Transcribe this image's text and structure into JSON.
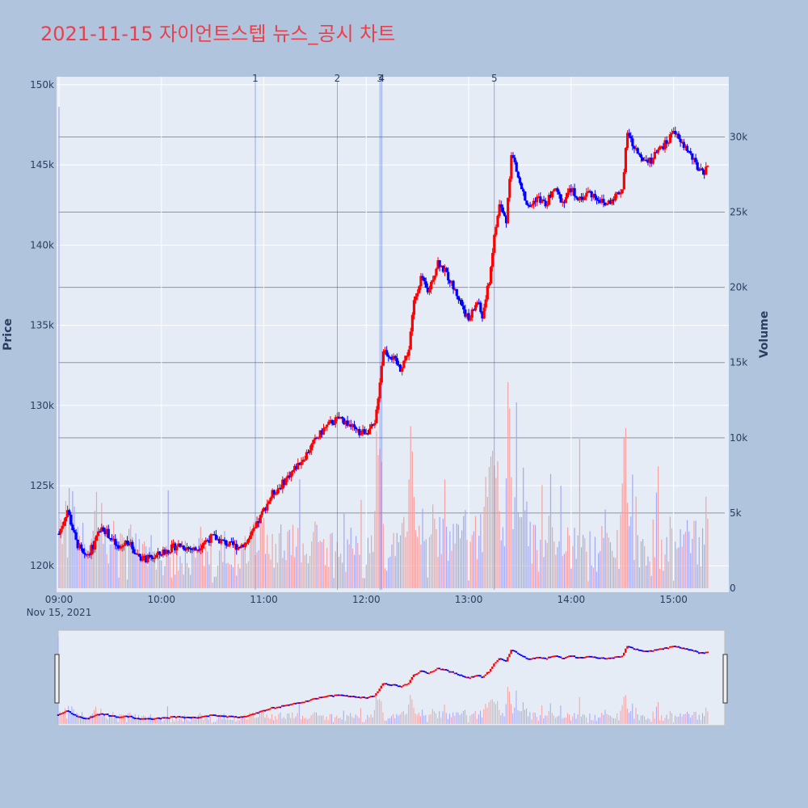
{
  "title": "2021-11-15 자이언트스텝 뉴스_공시 차트",
  "colors": {
    "up": "#ff0000",
    "down": "#0000ff",
    "vol_up": "#f4a3a3",
    "vol_down": "#a3a9f4",
    "bg": "#b0c4de",
    "plot_bg": "#e5ecf6"
  },
  "chart_data": {
    "type": "candlestick",
    "title": "2021-11-15 자이언트스텝 뉴스_공시 차트",
    "ylabel": "Price",
    "y2label": "Volume",
    "ylim": [
      118500,
      150500
    ],
    "y2lim": [
      0,
      34000
    ],
    "yticks": [
      120000,
      125000,
      130000,
      135000,
      140000,
      145000,
      150000
    ],
    "ytick_labels": [
      "120k",
      "125k",
      "130k",
      "135k",
      "140k",
      "145k",
      "150k"
    ],
    "y2ticks": [
      0,
      5000,
      10000,
      15000,
      20000,
      25000,
      30000
    ],
    "y2tick_labels": [
      "0",
      "5k",
      "10k",
      "15k",
      "20k",
      "25k",
      "30k"
    ],
    "xticks": [
      "09:00",
      "10:00",
      "11:00",
      "12:00",
      "13:00",
      "14:00",
      "15:00"
    ],
    "xdate_label": "Nov 15, 2021",
    "xrange": [
      "09:00",
      "15:30"
    ],
    "price_keypoints": [
      [
        "09:00",
        122000
      ],
      [
        "09:05",
        123500
      ],
      [
        "09:10",
        121500
      ],
      [
        "09:15",
        120500
      ],
      [
        "09:20",
        121200
      ],
      [
        "09:25",
        122500
      ],
      [
        "09:30",
        121800
      ],
      [
        "09:35",
        121000
      ],
      [
        "09:40",
        121600
      ],
      [
        "09:45",
        120800
      ],
      [
        "09:50",
        120400
      ],
      [
        "09:55",
        120500
      ],
      [
        "10:00",
        120800
      ],
      [
        "10:10",
        121300
      ],
      [
        "10:20",
        121000
      ],
      [
        "10:25",
        121500
      ],
      [
        "10:30",
        121800
      ],
      [
        "10:40",
        121300
      ],
      [
        "10:45",
        121200
      ],
      [
        "10:50",
        121500
      ],
      [
        "10:55",
        122300
      ],
      [
        "11:00",
        123500
      ],
      [
        "11:05",
        124500
      ],
      [
        "11:10",
        125000
      ],
      [
        "11:15",
        125700
      ],
      [
        "11:20",
        126300
      ],
      [
        "11:25",
        127000
      ],
      [
        "11:30",
        127800
      ],
      [
        "11:35",
        128500
      ],
      [
        "11:40",
        129000
      ],
      [
        "11:45",
        129200
      ],
      [
        "11:50",
        128800
      ],
      [
        "11:55",
        128300
      ],
      [
        "12:00",
        128400
      ],
      [
        "12:05",
        128700
      ],
      [
        "12:10",
        133500
      ],
      [
        "12:15",
        133000
      ],
      [
        "12:20",
        132300
      ],
      [
        "12:25",
        133500
      ],
      [
        "12:28",
        136500
      ],
      [
        "12:32",
        138000
      ],
      [
        "12:36",
        137000
      ],
      [
        "12:42",
        139000
      ],
      [
        "12:48",
        138000
      ],
      [
        "12:55",
        136500
      ],
      [
        "13:00",
        135300
      ],
      [
        "13:05",
        136500
      ],
      [
        "13:08",
        135500
      ],
      [
        "13:12",
        137800
      ],
      [
        "13:15",
        140500
      ],
      [
        "13:18",
        142500
      ],
      [
        "13:22",
        141500
      ],
      [
        "13:25",
        145800
      ],
      [
        "13:30",
        143800
      ],
      [
        "13:35",
        142300
      ],
      [
        "13:40",
        143000
      ],
      [
        "13:45",
        142500
      ],
      [
        "13:50",
        143500
      ],
      [
        "13:55",
        142700
      ],
      [
        "14:00",
        143500
      ],
      [
        "14:05",
        142800
      ],
      [
        "14:10",
        143300
      ],
      [
        "14:15",
        143000
      ],
      [
        "14:20",
        142500
      ],
      [
        "14:25",
        143000
      ],
      [
        "14:30",
        143500
      ],
      [
        "14:33",
        147000
      ],
      [
        "14:37",
        146000
      ],
      [
        "14:42",
        145500
      ],
      [
        "14:47",
        145300
      ],
      [
        "14:52",
        146000
      ],
      [
        "14:57",
        146500
      ],
      [
        "15:00",
        147300
      ],
      [
        "15:03",
        146500
      ],
      [
        "15:08",
        146000
      ],
      [
        "15:13",
        145000
      ],
      [
        "15:18",
        144300
      ],
      [
        "15:20",
        145000
      ]
    ],
    "news_markers": [
      {
        "label": "1",
        "time": "10:55"
      },
      {
        "label": "2",
        "time": "11:43"
      },
      {
        "label": "3",
        "time": "12:08"
      },
      {
        "label": "4",
        "time": "12:09"
      },
      {
        "label": "5",
        "time": "13:15"
      }
    ],
    "rangeslider": true
  }
}
